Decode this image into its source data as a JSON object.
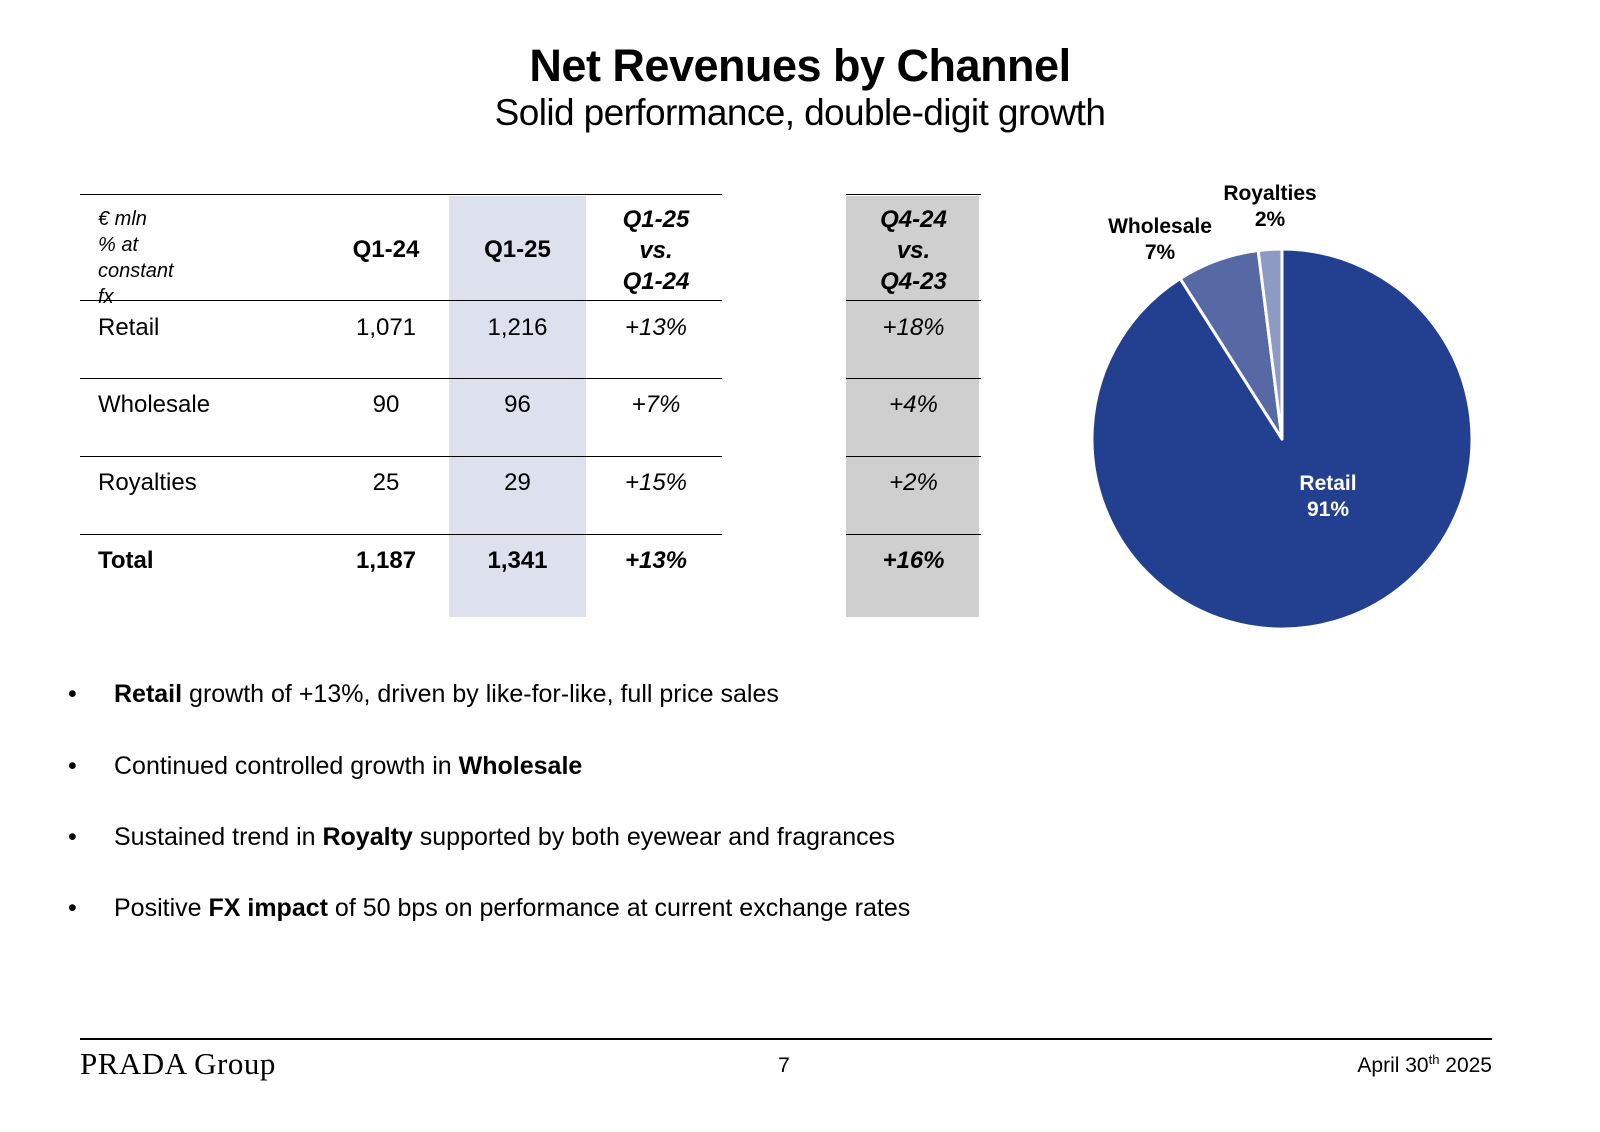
{
  "title": "Net Revenues by Channel",
  "subtitle": "Solid performance, double-digit growth",
  "table": {
    "unit_line1": "€ mln",
    "unit_line2": "% at constant fx",
    "col_q1_24": "Q1-24",
    "col_q1_25": "Q1-25",
    "col_yoy": [
      "Q1-25",
      "vs.",
      "Q1-24"
    ],
    "col_q4": [
      "Q4-24",
      "vs.",
      "Q4-23"
    ],
    "rows": [
      {
        "label": "Retail",
        "q1_24": "1,071",
        "q1_25": "1,216",
        "yoy": "+13%",
        "q4": "+18%"
      },
      {
        "label": "Wholesale",
        "q1_24": "90",
        "q1_25": "96",
        "yoy": "+7%",
        "q4": "+4%"
      },
      {
        "label": "Royalties",
        "q1_24": "25",
        "q1_25": "29",
        "yoy": "+15%",
        "q4": "+2%"
      },
      {
        "label": "Total",
        "q1_24": "1,187",
        "q1_25": "1,341",
        "yoy": "+13%",
        "q4": "+16%"
      }
    ]
  },
  "chart_data": {
    "type": "pie",
    "title": "",
    "slices": [
      {
        "name": "Retail",
        "value": 91,
        "label": "91%",
        "color": "#233f8f"
      },
      {
        "name": "Wholesale",
        "value": 7,
        "label": "7%",
        "color": "#5669a5"
      },
      {
        "name": "Royalties",
        "value": 2,
        "label": "2%",
        "color": "#8c9ac4"
      }
    ]
  },
  "bullets": [
    {
      "pre": "",
      "bold": "Retail",
      "post": " growth of +13%, driven by like-for-like, full price sales"
    },
    {
      "pre": "Continued controlled growth in ",
      "bold": "Wholesale",
      "post": ""
    },
    {
      "pre": "Sustained trend in ",
      "bold": "Royalty",
      "post": " supported by both eyewear and fragrances"
    },
    {
      "pre": "Positive ",
      "bold": "FX impact",
      "post": " of 50 bps on performance at current exchange rates"
    }
  ],
  "bullet_char": "•",
  "footer": {
    "brand": "PRADA Group",
    "page": "7",
    "date_pre": "April 30",
    "date_sup": "th",
    "date_post": " 2025"
  }
}
